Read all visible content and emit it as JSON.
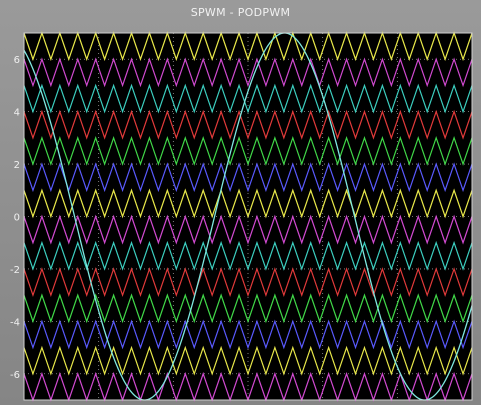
{
  "chart_data": {
    "type": "line",
    "title": "SPWM - PODPWM",
    "xlabel": "",
    "ylabel": "",
    "ylim": [
      -7,
      7
    ],
    "yticks": [
      6,
      4,
      2,
      0,
      -2,
      -4,
      -6
    ],
    "ytick_labels": [
      "6",
      "4",
      "2",
      "0",
      "-2",
      "-4",
      "-6"
    ],
    "grid": true,
    "plot_background": "#000000",
    "carriers": {
      "shape": "triangle",
      "band_height": 1,
      "periods_per_window": 25,
      "bands": [
        {
          "low": 6,
          "high": 7,
          "color": "#e8e84a"
        },
        {
          "low": 5,
          "high": 6,
          "color": "#d14ad1"
        },
        {
          "low": 4,
          "high": 5,
          "color": "#3ccfc0"
        },
        {
          "low": 3,
          "high": 4,
          "color": "#e23a3a"
        },
        {
          "low": 2,
          "high": 3,
          "color": "#40d848"
        },
        {
          "low": 1,
          "high": 2,
          "color": "#5a5aff"
        },
        {
          "low": 0,
          "high": 1,
          "color": "#e8e84a"
        },
        {
          "low": -1,
          "high": 0,
          "color": "#d14ad1"
        },
        {
          "low": -2,
          "high": -1,
          "color": "#3ccfc0"
        },
        {
          "low": -3,
          "high": -2,
          "color": "#e23a3a"
        },
        {
          "low": -4,
          "high": -3,
          "color": "#40d848"
        },
        {
          "low": -5,
          "high": -4,
          "color": "#5a5aff"
        },
        {
          "low": -6,
          "high": -5,
          "color": "#e8e84a"
        },
        {
          "low": -7,
          "high": -6,
          "color": "#d14ad1"
        }
      ]
    },
    "reference": {
      "shape": "sine",
      "amplitude": 7,
      "cycles_per_window": 1.6,
      "phase_deg": 115,
      "color": "#7fe8e0"
    }
  }
}
